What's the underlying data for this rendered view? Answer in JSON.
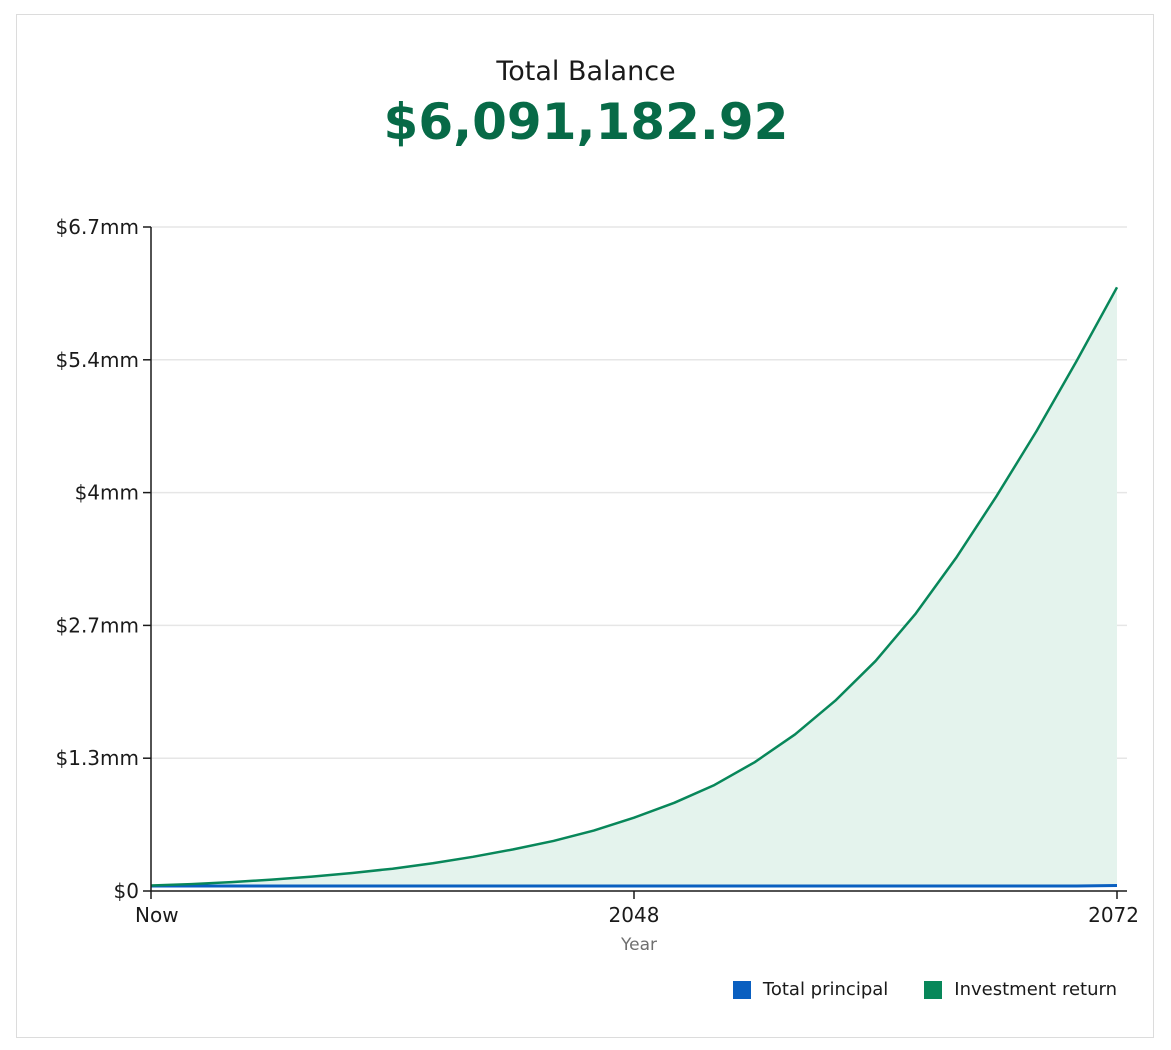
{
  "header": {
    "title": "Total Balance",
    "total_value": "$6,091,182.92"
  },
  "colors": {
    "principal": "#0a5fc0",
    "investment": "#08875a",
    "investment_fill": "#e4f3ed",
    "total": "#076a47",
    "grid": "#e6e6e6",
    "axis": "#1a1a1a"
  },
  "chart_data": {
    "type": "area",
    "title": "Total Balance",
    "xlabel": "Year",
    "ylabel": "",
    "xlim": [
      2024,
      2072
    ],
    "ylim": [
      0,
      6700000
    ],
    "x_ticks": [
      {
        "value": 2024,
        "label": "Now"
      },
      {
        "value": 2048,
        "label": "2048"
      },
      {
        "value": 2072,
        "label": "2072"
      }
    ],
    "y_ticks": [
      {
        "value": 0,
        "label": "$0"
      },
      {
        "value": 1340000,
        "label": "$1.3mm"
      },
      {
        "value": 2680000,
        "label": "$2.7mm"
      },
      {
        "value": 4020000,
        "label": "$4mm"
      },
      {
        "value": 5360000,
        "label": "$5.4mm"
      },
      {
        "value": 6700000,
        "label": "$6.7mm"
      }
    ],
    "grid": true,
    "legend_position": "bottom-right",
    "x": [
      2024,
      2026,
      2028,
      2030,
      2032,
      2034,
      2036,
      2038,
      2040,
      2042,
      2044,
      2046,
      2048,
      2050,
      2052,
      2054,
      2056,
      2058,
      2060,
      2062,
      2064,
      2066,
      2068,
      2070,
      2072
    ],
    "series": [
      {
        "name": "Total principal",
        "values": [
          51000,
          51000,
          51000,
          51000,
          51000,
          51000,
          51000,
          51000,
          51000,
          51000,
          51000,
          51000,
          51000,
          51000,
          51000,
          51000,
          51000,
          51000,
          51000,
          51000,
          51000,
          51000,
          51000,
          51000,
          55000
        ]
      },
      {
        "name": "Investment return",
        "values": [
          55000,
          70000,
          90000,
          115000,
          145000,
          182000,
          225000,
          280000,
          345000,
          420000,
          505000,
          610000,
          740000,
          890000,
          1070000,
          1300000,
          1580000,
          1920000,
          2320000,
          2800000,
          3360000,
          3980000,
          4640000,
          5350000,
          6091183
        ]
      }
    ]
  },
  "legend": {
    "items": [
      {
        "label": "Total principal",
        "color": "#0a5fc0"
      },
      {
        "label": "Investment return",
        "color": "#08875a"
      }
    ]
  }
}
